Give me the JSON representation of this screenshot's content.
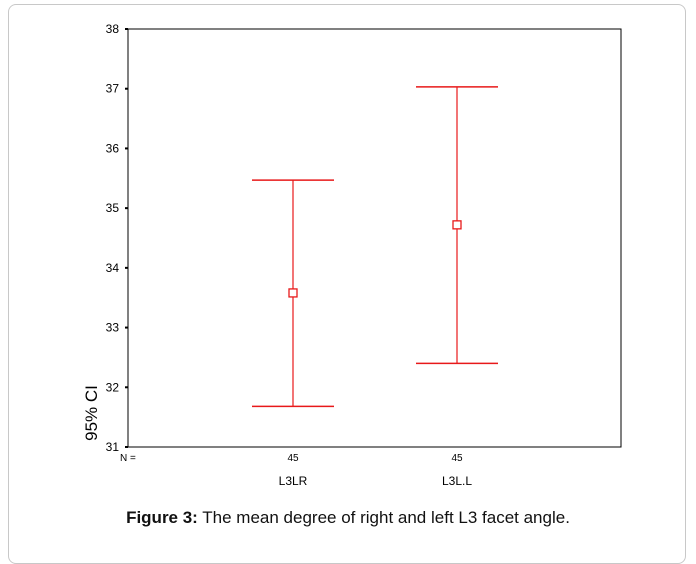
{
  "chart_data": {
    "type": "errorbar",
    "categories": [
      "L3LR",
      "L3L.L"
    ],
    "n_label": "N =",
    "n_values": [
      "45",
      "45"
    ],
    "series": [
      {
        "category": "L3LR",
        "mean": 33.58,
        "lower": 31.68,
        "upper": 35.47
      },
      {
        "category": "L3L.L",
        "mean": 34.72,
        "lower": 32.4,
        "upper": 37.03
      }
    ],
    "ylabel": "95% CI",
    "ylim": [
      31,
      38
    ],
    "yticks": [
      "31",
      "32",
      "33",
      "34",
      "35",
      "36",
      "37",
      "38"
    ],
    "grid": false,
    "color": "#e8191a"
  },
  "caption": {
    "label": "Figure 3:",
    "text": "The mean degree of right and left L3 facet angle."
  }
}
